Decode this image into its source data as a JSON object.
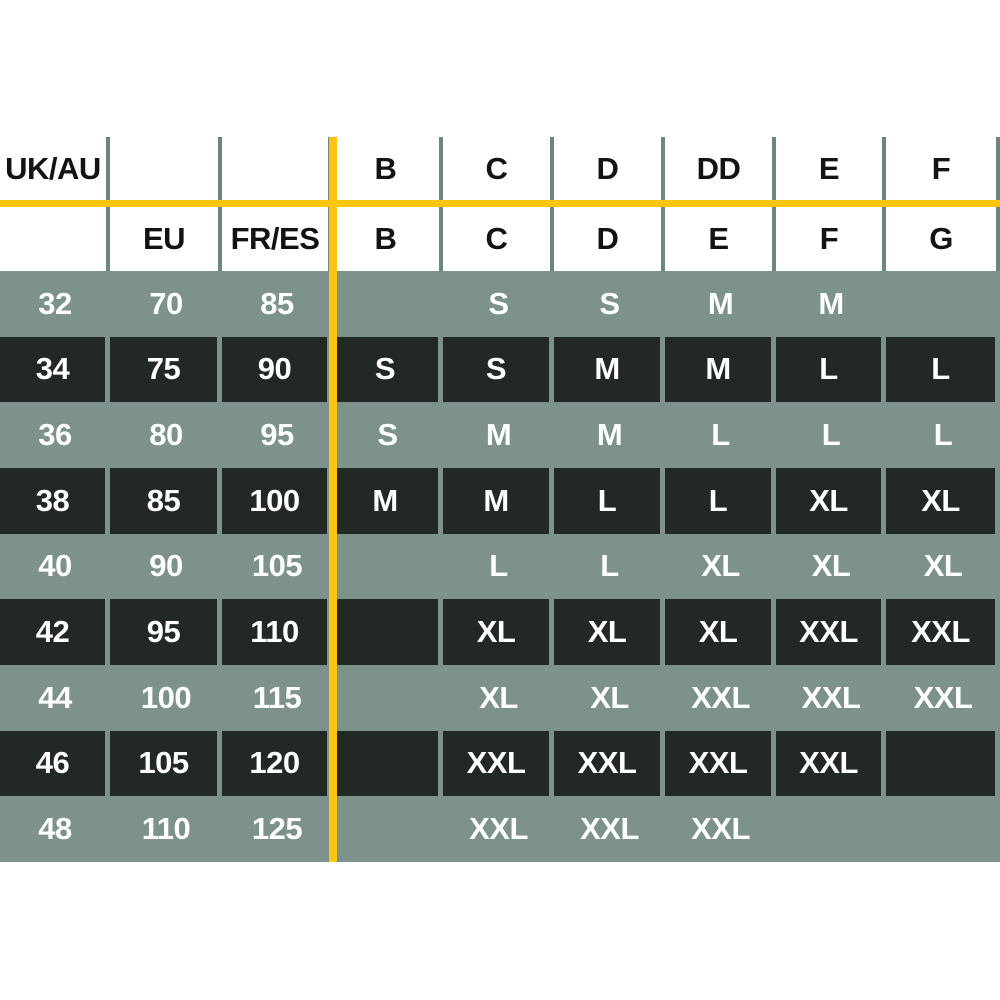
{
  "chart_data": {
    "type": "table",
    "title": "",
    "header_row1": [
      "UK/AU",
      "",
      "",
      "B",
      "C",
      "D",
      "DD",
      "E",
      "F"
    ],
    "header_row2": [
      "",
      "EU",
      "FR/ES",
      "B",
      "C",
      "D",
      "E",
      "F",
      "G"
    ],
    "rows": [
      {
        "shade": "sage",
        "cells": [
          "32",
          "70",
          "85",
          "",
          "S",
          "S",
          "M",
          "M",
          ""
        ]
      },
      {
        "shade": "dark",
        "cells": [
          "34",
          "75",
          "90",
          "S",
          "S",
          "M",
          "M",
          "L",
          "L"
        ]
      },
      {
        "shade": "sage",
        "cells": [
          "36",
          "80",
          "95",
          "S",
          "M",
          "M",
          "L",
          "L",
          "L"
        ]
      },
      {
        "shade": "dark",
        "cells": [
          "38",
          "85",
          "100",
          "M",
          "M",
          "L",
          "L",
          "XL",
          "XL"
        ]
      },
      {
        "shade": "sage",
        "cells": [
          "40",
          "90",
          "105",
          "",
          "L",
          "L",
          "XL",
          "XL",
          "XL"
        ]
      },
      {
        "shade": "dark",
        "cells": [
          "42",
          "95",
          "110",
          "",
          "XL",
          "XL",
          "XL",
          "XXL",
          "XXL"
        ]
      },
      {
        "shade": "sage",
        "cells": [
          "44",
          "100",
          "115",
          "",
          "XL",
          "XL",
          "XXL",
          "XXL",
          "XXL"
        ]
      },
      {
        "shade": "dark",
        "cells": [
          "46",
          "105",
          "120",
          "",
          "XXL",
          "XXL",
          "XXL",
          "XXL",
          ""
        ]
      },
      {
        "shade": "sage",
        "cells": [
          "48",
          "110",
          "125",
          "",
          "XXL",
          "XXL",
          "XXL",
          "",
          ""
        ]
      }
    ],
    "colors": {
      "accent_yellow": "#fcc60d",
      "row_sage": "#7d918d",
      "row_dark": "#222823",
      "header_separator": "#6e8583",
      "header_text": "#131313",
      "data_text": "#ffffff"
    }
  }
}
